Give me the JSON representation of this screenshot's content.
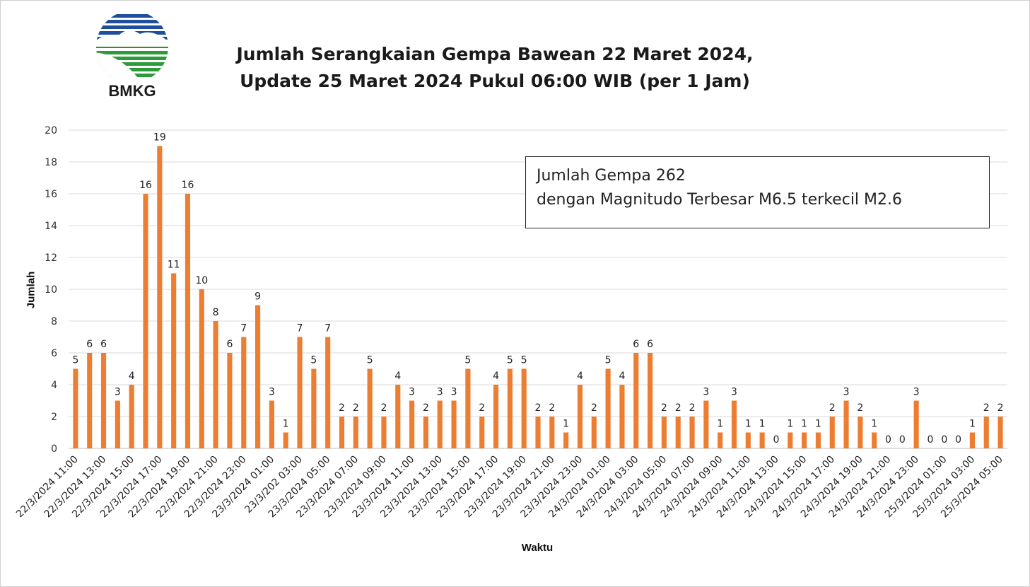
{
  "logo": {
    "text": "BMKG",
    "icon": "bmkg-logo-icon"
  },
  "title": {
    "line1": "Jumlah Serangkaian Gempa Bawean 22 Maret 2024,",
    "line2": "Update 25 Maret 2024 Pukul 06:00 WIB (per 1 Jam)"
  },
  "info": {
    "line1": "Jumlah Gempa 262",
    "line2": "dengan Magnitudo Terbesar M6.5 terkecil M2.6"
  },
  "colors": {
    "bar": "#ED7D31",
    "grid": "#D9D9D9",
    "text": "#222222"
  },
  "chart_data": {
    "type": "bar",
    "xlabel": "Waktu",
    "ylabel": "Jumlah",
    "ylim": [
      0,
      20
    ],
    "yticks": [
      0,
      2,
      4,
      6,
      8,
      10,
      12,
      14,
      16,
      18,
      20
    ],
    "grid": true,
    "tick_labels_every": 2,
    "x_tick_labels": [
      "22/3/2024 11:00",
      "22/3/2024 13:00",
      "22/3/2024 15:00",
      "22/3/2024 17:00",
      "22/3/2024 19:00",
      "22/3/2024 21:00",
      "22/3/2024 23:00",
      "23/3/2024 01:00",
      "23/3/202 03:00",
      "23/3/2024 05:00",
      "23/3/2024 07:00",
      "23/3/2024 09:00",
      "23/3/2024 11:00",
      "23/3/2024 13:00",
      "23/3/2024 15:00",
      "23/3/2024 17:00",
      "23/3/2024 19:00",
      "23/3/2024 21:00",
      "23/3/2024 23:00",
      "24/3/2024 01:00",
      "24/3/2024 03:00",
      "24/3/2024 05:00",
      "24/3/2024 07:00",
      "24/3/2024 09:00",
      "24/3/2024 11:00",
      "24/3/2024 13:00",
      "24/3/2024 15:00",
      "24/3/2024 17:00",
      "24/3/2024 19:00",
      "24/3/2024 21:00",
      "24/3/2024 23:00",
      "25/3/2024 01:00",
      "25/3/2024 03:00",
      "25/3/2024 05:00"
    ],
    "values": [
      5,
      6,
      6,
      3,
      4,
      16,
      19,
      11,
      16,
      10,
      8,
      6,
      7,
      9,
      3,
      1,
      7,
      5,
      7,
      2,
      2,
      5,
      2,
      4,
      3,
      2,
      3,
      3,
      5,
      2,
      4,
      5,
      5,
      2,
      2,
      1,
      4,
      2,
      5,
      4,
      6,
      6,
      2,
      2,
      2,
      3,
      1,
      3,
      1,
      1,
      0,
      1,
      1,
      1,
      2,
      3,
      2,
      1,
      0,
      0,
      3,
      0,
      0,
      0,
      1,
      2,
      2
    ]
  }
}
